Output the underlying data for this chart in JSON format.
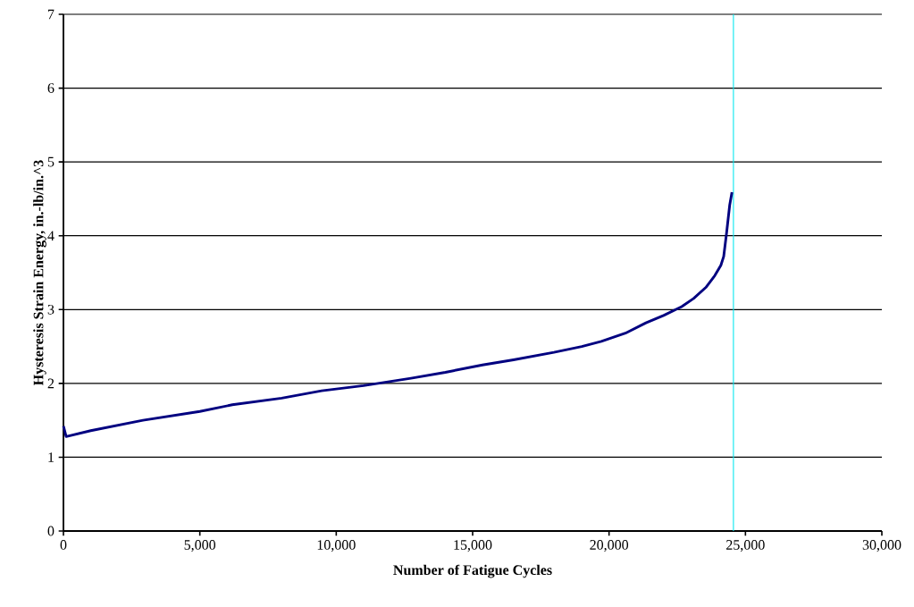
{
  "chart_data": {
    "type": "line",
    "xlabel": "Number of Fatigue Cycles",
    "ylabel": "Hysteresis Strain Energy, in.-lb/in.^3",
    "x": [
      0,
      100,
      1000,
      2915,
      5000,
      6190,
      8000,
      9465,
      11000,
      12740,
      14000,
      15360,
      16500,
      17980,
      19000,
      19716,
      20600,
      21354,
      22000,
      22664,
      23100,
      23548,
      23876,
      24100,
      24203,
      24312,
      24421,
      24506
    ],
    "series": [
      {
        "color": "#000080",
        "values": [
          1.42,
          1.28,
          1.36,
          1.5,
          1.62,
          1.71,
          1.8,
          1.9,
          1.97,
          2.07,
          2.15,
          2.25,
          2.32,
          2.42,
          2.5,
          2.57,
          2.68,
          2.82,
          2.92,
          3.04,
          3.15,
          3.3,
          3.46,
          3.6,
          3.72,
          4.05,
          4.41,
          4.59
        ]
      }
    ],
    "xlim": [
      0,
      30000
    ],
    "ylim": [
      0,
      7
    ],
    "xticks": [
      {
        "value": 0,
        "label": "0"
      },
      {
        "value": 5000,
        "label": "5,000"
      },
      {
        "value": 10000,
        "label": "10,000"
      },
      {
        "value": 15000,
        "label": "15,000"
      },
      {
        "value": 20000,
        "label": "20,000"
      },
      {
        "value": 25000,
        "label": "25,000"
      },
      {
        "value": 30000,
        "label": "30,000"
      }
    ],
    "yticks": [
      0,
      1,
      2,
      3,
      4,
      5,
      6,
      7
    ],
    "grid": "y",
    "ref_lines": [
      {
        "axis": "x",
        "value": 24560,
        "color": "#00e5ee"
      }
    ]
  }
}
